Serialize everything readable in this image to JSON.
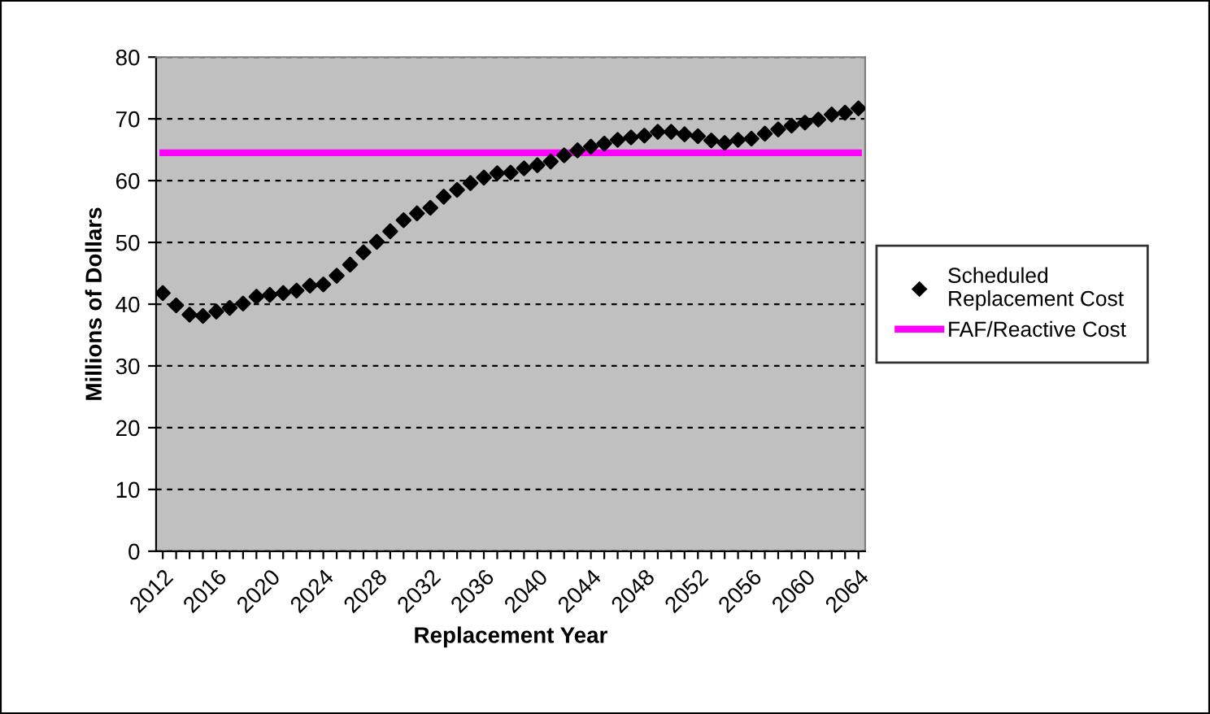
{
  "chart_data": {
    "type": "scatter",
    "xlabel": "Replacement Year",
    "ylabel": "Millions of Dollars",
    "categories": [
      "2012",
      null,
      null,
      null,
      "2016",
      null,
      null,
      null,
      "2020",
      null,
      null,
      null,
      "2024",
      null,
      null,
      null,
      "2028",
      null,
      null,
      null,
      "2032",
      null,
      null,
      null,
      "2036",
      null,
      null,
      null,
      "2040",
      null,
      null,
      null,
      "2044",
      null,
      null,
      null,
      "2048",
      null,
      null,
      null,
      "2052",
      null,
      null,
      null,
      "2056",
      null,
      null,
      null,
      "2060",
      null,
      null,
      null,
      "2064"
    ],
    "series": [
      {
        "name": "Scheduled Replacement Cost",
        "marker": "diamond",
        "color": "#000000",
        "values": [
          41.8,
          39.8,
          38.3,
          38.1,
          38.8,
          39.4,
          40.1,
          41.2,
          41.5,
          41.8,
          42.2,
          43.0,
          43.2,
          44.6,
          46.4,
          48.4,
          50.1,
          51.8,
          53.6,
          54.7,
          55.6,
          57.4,
          58.5,
          59.6,
          60.5,
          61.2,
          61.3,
          62.0,
          62.5,
          63.1,
          64.1,
          64.9,
          65.5,
          66.0,
          66.6,
          67.0,
          67.3,
          67.9,
          67.9,
          67.5,
          67.2,
          66.5,
          66.1,
          66.6,
          66.8,
          67.6,
          68.3,
          68.9,
          69.4,
          69.9,
          70.7,
          71.0,
          71.7
        ]
      },
      {
        "name": "FAF/Reactive Cost",
        "type": "line",
        "marker": "none",
        "color": "#ff00ff",
        "values": [
          64.5,
          64.5,
          64.5,
          64.5,
          64.5,
          64.5,
          64.5,
          64.5,
          64.5,
          64.5,
          64.5,
          64.5,
          64.5,
          64.5,
          64.5,
          64.5,
          64.5,
          64.5,
          64.5,
          64.5,
          64.5,
          64.5,
          64.5,
          64.5,
          64.5,
          64.5,
          64.5,
          64.5,
          64.5,
          64.5,
          64.5,
          64.5,
          64.5,
          64.5,
          64.5,
          64.5,
          64.5,
          64.5,
          64.5,
          64.5,
          64.5,
          64.5,
          64.5,
          64.5,
          64.5,
          64.5,
          64.5,
          64.5,
          64.5,
          64.5,
          64.5,
          64.5,
          64.5
        ]
      }
    ],
    "ylim": [
      0,
      80
    ],
    "yticks": [
      0,
      10,
      20,
      30,
      40,
      50,
      60,
      70,
      80
    ],
    "grid": "y",
    "legend": "right"
  }
}
